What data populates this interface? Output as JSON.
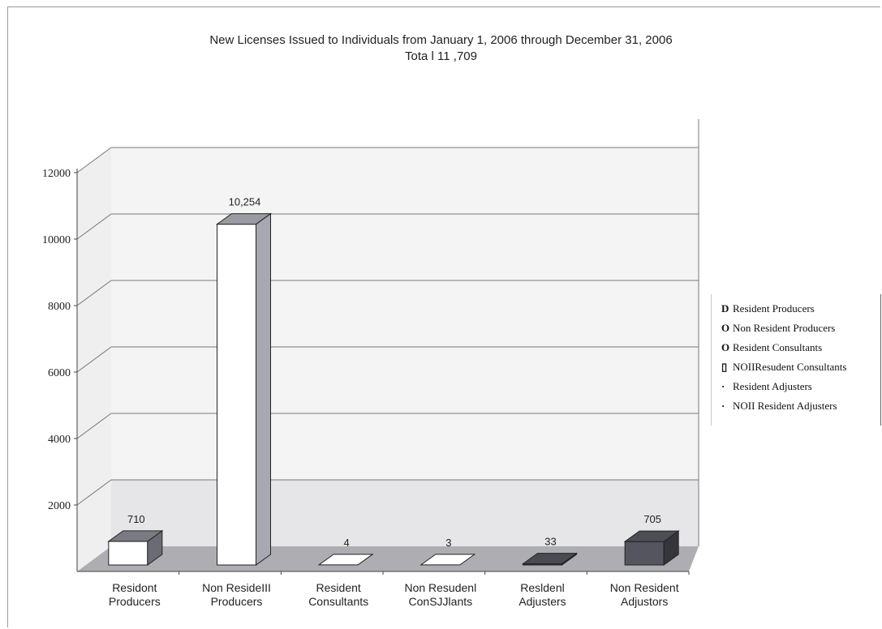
{
  "chart_data": {
    "type": "bar",
    "title": "New Licenses Issued to Individuals from January 1, 2006 through December 31, 2006",
    "subtitle": "Tota l 11 ,709",
    "categories": [
      [
        "Residont",
        "Producers"
      ],
      [
        "Non ResideIII",
        "Producers"
      ],
      [
        "Resident",
        "Consultants"
      ],
      [
        "Non Resudenl",
        "ConSJJlants"
      ],
      [
        "Resldenl",
        "Adjusters"
      ],
      [
        "Non Resident",
        "Adjustors"
      ]
    ],
    "values": [
      710,
      10254,
      4,
      3,
      33,
      705
    ],
    "value_labels": [
      "710",
      "10,254",
      "4",
      "3",
      "33",
      "705"
    ],
    "ylim": [
      0,
      12000
    ],
    "yticks": [
      2000,
      4000,
      6000,
      8000,
      10000,
      12000
    ],
    "ytick_labels": [
      "2000",
      "4000",
      "6000",
      "8000",
      "10000",
      "12000"
    ],
    "grid": true,
    "legend_position": "right",
    "legend": [
      {
        "mark": "D",
        "label": "Resident Producers"
      },
      {
        "mark": "O",
        "label": "Non Resident Producers"
      },
      {
        "mark": "O",
        "label": "Resident Consultants"
      },
      {
        "mark": "▯",
        "label": "NOIIResudent Consultants"
      },
      {
        "mark": "·",
        "label": "Resident Adjusters"
      },
      {
        "mark": "·",
        "label": "NOII Resident Adjusters"
      }
    ],
    "colors": [
      "#ffffff",
      "#ffffff",
      "#ffffff",
      "#ffffff",
      "#3d3d45",
      "#55555f"
    ],
    "side_colors": [
      "#6b6b73",
      "#a8a8b2",
      "#777777",
      "#777777",
      "#2b2b30",
      "#35353c"
    ],
    "top_colors": [
      "#7a7a82",
      "#9a9aa2",
      "#ffffff",
      "#ffffff",
      "#4a4a52",
      "#4d4d56"
    ]
  }
}
